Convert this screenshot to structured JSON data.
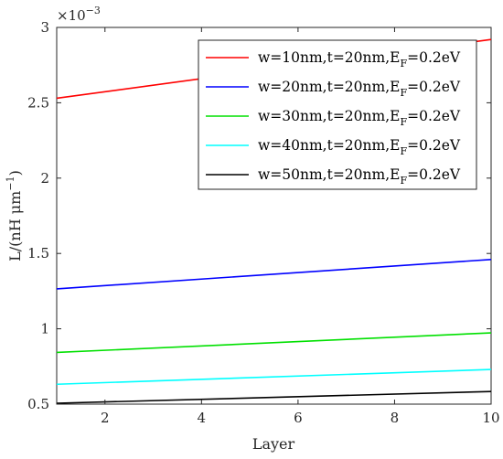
{
  "chart_data": {
    "type": "line",
    "xlabel": "Layer",
    "ylabel_main": "L/(nH",
    "ylabel_unit": "μm",
    "ylabel_exp": "−1",
    "ylabel_close": ")",
    "y_multiplier_base": "×10",
    "y_multiplier_exp": "−3",
    "xlim": [
      1,
      10
    ],
    "ylim": [
      0.5,
      3
    ],
    "x_ticks": [
      2,
      4,
      6,
      8,
      10
    ],
    "y_ticks": [
      0.5,
      1,
      1.5,
      2,
      2.5,
      3
    ],
    "y_tick_labels": [
      "0.5",
      "1",
      "1.5",
      "2",
      "2.5",
      "3"
    ],
    "x_tick_labels": [
      "2",
      "4",
      "6",
      "8",
      "10"
    ],
    "grid": false,
    "legend_position": "top-right",
    "series": [
      {
        "name": "w=10nm,t=20nm,E",
        "name_sub": "F",
        "name_tail": "=0.2eV",
        "color": "#ff0000",
        "x": [
          1,
          10
        ],
        "y": [
          2.53,
          2.92
        ]
      },
      {
        "name": "w=20nm,t=20nm,E",
        "name_sub": "F",
        "name_tail": "=0.2eV",
        "color": "#0000ff",
        "x": [
          1,
          10
        ],
        "y": [
          1.265,
          1.46
        ]
      },
      {
        "name": "w=30nm,t=20nm,E",
        "name_sub": "F",
        "name_tail": "=0.2eV",
        "color": "#00e000",
        "x": [
          1,
          10
        ],
        "y": [
          0.843,
          0.973
        ]
      },
      {
        "name": "w=40nm,t=20nm,E",
        "name_sub": "F",
        "name_tail": "=0.2eV",
        "color": "#00ffff",
        "x": [
          1,
          10
        ],
        "y": [
          0.632,
          0.73
        ]
      },
      {
        "name": "w=50nm,t=20nm,E",
        "name_sub": "F",
        "name_tail": "=0.2eV",
        "color": "#000000",
        "x": [
          1,
          10
        ],
        "y": [
          0.506,
          0.584
        ]
      }
    ]
  }
}
